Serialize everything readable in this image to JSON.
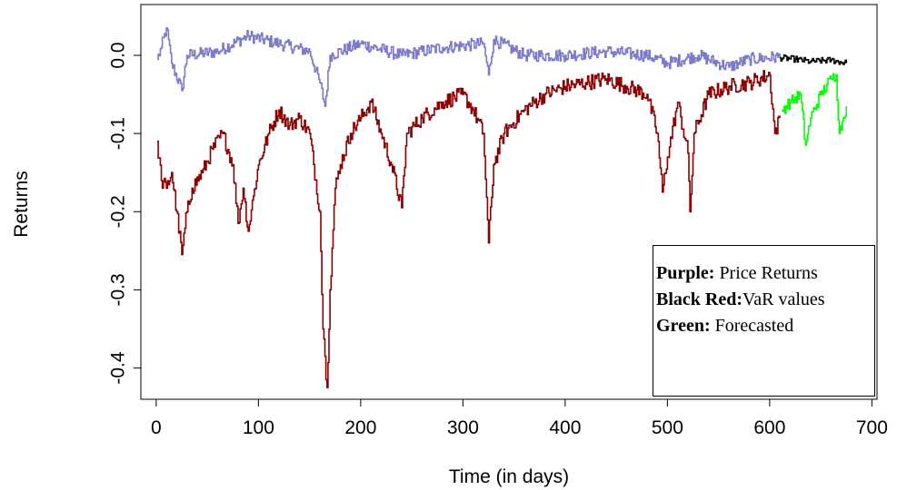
{
  "chart_data": {
    "type": "line",
    "title": "",
    "xlabel": "Time (in days)",
    "ylabel": "Returns",
    "xlim": [
      -15,
      705
    ],
    "ylim": [
      -0.44,
      0.065
    ],
    "x_ticks": [
      0,
      100,
      200,
      300,
      400,
      500,
      600,
      700
    ],
    "y_ticks": [
      0.0,
      -0.1,
      -0.2,
      -0.3,
      -0.4
    ],
    "y_tick_labels": [
      "0.0",
      "-0.1",
      "-0.2",
      "-0.3",
      "-0.4"
    ],
    "x_tick_labels": [
      "0",
      "100",
      "200",
      "300",
      "400",
      "500",
      "600",
      "700"
    ],
    "grid": false,
    "series": [
      {
        "color": "#7b7bc9",
        "x_range": [
          1,
          610
        ],
        "anchors": [
          [
            1,
            -0.005
          ],
          [
            5,
            0.01
          ],
          [
            10,
            0.035
          ],
          [
            15,
            -0.01
          ],
          [
            25,
            -0.045
          ],
          [
            30,
            0.0
          ],
          [
            60,
            0.005
          ],
          [
            90,
            0.025
          ],
          [
            120,
            0.015
          ],
          [
            150,
            0.005
          ],
          [
            160,
            -0.035
          ],
          [
            165,
            -0.065
          ],
          [
            170,
            0.0
          ],
          [
            200,
            0.015
          ],
          [
            240,
            0.0
          ],
          [
            280,
            0.01
          ],
          [
            320,
            0.015
          ],
          [
            325,
            -0.025
          ],
          [
            330,
            0.02
          ],
          [
            360,
            0.0
          ],
          [
            400,
            0.0
          ],
          [
            440,
            0.005
          ],
          [
            480,
            0.0
          ],
          [
            500,
            -0.01
          ],
          [
            530,
            0.0
          ],
          [
            560,
            -0.015
          ],
          [
            580,
            -0.005
          ],
          [
            610,
            -0.002
          ]
        ],
        "noise": 0.008
      },
      {
        "color": "#000000",
        "x_range": [
          610,
          675
        ],
        "anchors": [
          [
            610,
            -0.003
          ],
          [
            625,
            -0.005
          ],
          [
            640,
            -0.008
          ],
          [
            660,
            -0.006
          ],
          [
            675,
            -0.01
          ]
        ],
        "noise": 0.004
      },
      {
        "color": "#8b0000",
        "x_range": [
          1,
          610
        ],
        "anchors": [
          [
            1,
            -0.11
          ],
          [
            5,
            -0.16
          ],
          [
            10,
            -0.17
          ],
          [
            15,
            -0.15
          ],
          [
            20,
            -0.2
          ],
          [
            25,
            -0.255
          ],
          [
            30,
            -0.2
          ],
          [
            35,
            -0.17
          ],
          [
            45,
            -0.15
          ],
          [
            55,
            -0.12
          ],
          [
            65,
            -0.1
          ],
          [
            75,
            -0.14
          ],
          [
            80,
            -0.215
          ],
          [
            85,
            -0.17
          ],
          [
            90,
            -0.225
          ],
          [
            95,
            -0.18
          ],
          [
            100,
            -0.14
          ],
          [
            110,
            -0.1
          ],
          [
            120,
            -0.07
          ],
          [
            130,
            -0.09
          ],
          [
            140,
            -0.08
          ],
          [
            150,
            -0.1
          ],
          [
            160,
            -0.2
          ],
          [
            163,
            -0.35
          ],
          [
            165,
            -0.385
          ],
          [
            167,
            -0.425
          ],
          [
            170,
            -0.3
          ],
          [
            175,
            -0.17
          ],
          [
            180,
            -0.14
          ],
          [
            190,
            -0.1
          ],
          [
            200,
            -0.08
          ],
          [
            210,
            -0.06
          ],
          [
            220,
            -0.1
          ],
          [
            230,
            -0.14
          ],
          [
            240,
            -0.195
          ],
          [
            245,
            -0.1
          ],
          [
            260,
            -0.08
          ],
          [
            280,
            -0.06
          ],
          [
            300,
            -0.05
          ],
          [
            310,
            -0.07
          ],
          [
            320,
            -0.1
          ],
          [
            325,
            -0.24
          ],
          [
            330,
            -0.14
          ],
          [
            340,
            -0.1
          ],
          [
            360,
            -0.07
          ],
          [
            380,
            -0.05
          ],
          [
            400,
            -0.04
          ],
          [
            420,
            -0.035
          ],
          [
            440,
            -0.03
          ],
          [
            460,
            -0.04
          ],
          [
            480,
            -0.05
          ],
          [
            490,
            -0.1
          ],
          [
            495,
            -0.175
          ],
          [
            500,
            -0.13
          ],
          [
            510,
            -0.06
          ],
          [
            520,
            -0.125
          ],
          [
            522,
            -0.2
          ],
          [
            526,
            -0.1
          ],
          [
            540,
            -0.05
          ],
          [
            560,
            -0.04
          ],
          [
            580,
            -0.035
          ],
          [
            600,
            -0.025
          ],
          [
            605,
            -0.1
          ],
          [
            610,
            -0.08
          ]
        ],
        "noise": 0.01
      },
      {
        "color": "#00ff00",
        "x_range": [
          612,
          675
        ],
        "anchors": [
          [
            612,
            -0.07
          ],
          [
            620,
            -0.06
          ],
          [
            630,
            -0.05
          ],
          [
            635,
            -0.115
          ],
          [
            640,
            -0.08
          ],
          [
            650,
            -0.05
          ],
          [
            660,
            -0.03
          ],
          [
            665,
            -0.025
          ],
          [
            668,
            -0.1
          ],
          [
            672,
            -0.08
          ],
          [
            675,
            -0.065
          ]
        ],
        "noise": 0.008
      }
    ]
  },
  "legend": {
    "items": [
      {
        "label_bold": "Purple:",
        "label_text": "Price Returns"
      },
      {
        "label_bold": "Black Red:",
        "label_text": "VaR values"
      },
      {
        "label_bold": "Green:",
        "label_text": "Forecasted"
      }
    ]
  }
}
